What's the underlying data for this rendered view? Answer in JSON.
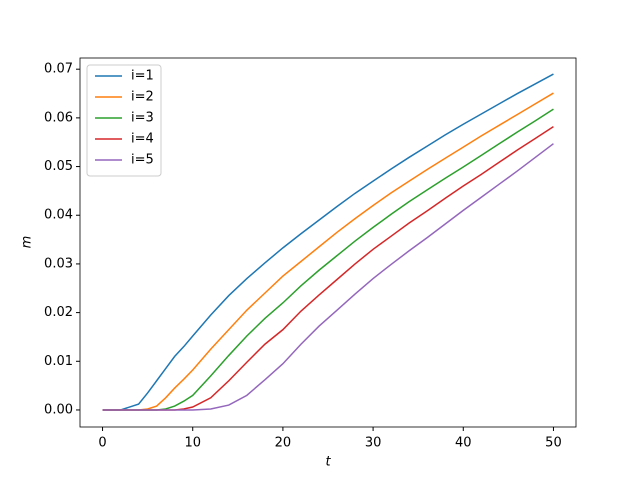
{
  "chart_data": {
    "type": "line",
    "xlabel": "t",
    "ylabel": "m",
    "x": [
      0,
      2,
      4,
      5,
      6,
      7,
      8,
      9,
      10,
      12,
      14,
      16,
      18,
      20,
      22,
      24,
      26,
      28,
      30,
      32,
      34,
      36,
      38,
      40,
      42,
      44,
      46,
      48,
      50
    ],
    "series": [
      {
        "name": "i=1",
        "color": "#1f77b4",
        "values": [
          0,
          0,
          0.0012,
          0.0035,
          0.006,
          0.0085,
          0.011,
          0.013,
          0.0152,
          0.0195,
          0.0235,
          0.027,
          0.0302,
          0.0333,
          0.0362,
          0.039,
          0.0418,
          0.0445,
          0.047,
          0.0495,
          0.0519,
          0.0542,
          0.0565,
          0.0587,
          0.0608,
          0.0629,
          0.065,
          0.067,
          0.069
        ]
      },
      {
        "name": "i=2",
        "color": "#ff7f0e",
        "values": [
          0,
          0,
          0,
          0.0002,
          0.0008,
          0.0025,
          0.0045,
          0.0063,
          0.0082,
          0.0125,
          0.0165,
          0.0205,
          0.024,
          0.0275,
          0.0305,
          0.0335,
          0.0365,
          0.0393,
          0.042,
          0.0446,
          0.047,
          0.0494,
          0.0517,
          0.054,
          0.0563,
          0.0585,
          0.0607,
          0.0629,
          0.0651
        ]
      },
      {
        "name": "i=3",
        "color": "#2ca02c",
        "values": [
          0,
          0,
          0,
          0,
          0,
          0.0002,
          0.0008,
          0.0018,
          0.003,
          0.007,
          0.0112,
          0.0152,
          0.0188,
          0.022,
          0.0255,
          0.0287,
          0.0317,
          0.0347,
          0.0375,
          0.0402,
          0.0428,
          0.0452,
          0.0476,
          0.0499,
          0.0523,
          0.0547,
          0.0571,
          0.0594,
          0.0618
        ]
      },
      {
        "name": "i=4",
        "color": "#d62728",
        "values": [
          0,
          0,
          0,
          0,
          0,
          0,
          0,
          0.0002,
          0.0006,
          0.0025,
          0.006,
          0.0098,
          0.0135,
          0.0165,
          0.0203,
          0.0236,
          0.0268,
          0.03,
          0.033,
          0.0357,
          0.0384,
          0.0409,
          0.0435,
          0.046,
          0.0484,
          0.0509,
          0.0534,
          0.0558,
          0.0582
        ]
      },
      {
        "name": "i=5",
        "color": "#9467bd",
        "values": [
          0,
          0,
          0,
          0,
          0,
          0,
          0,
          0,
          0,
          0.0002,
          0.001,
          0.003,
          0.0062,
          0.0095,
          0.0135,
          0.0172,
          0.0205,
          0.0238,
          0.027,
          0.0299,
          0.0327,
          0.0354,
          0.0382,
          0.041,
          0.0437,
          0.0464,
          0.0491,
          0.0519,
          0.0547
        ]
      }
    ],
    "xlim": [
      -2.5,
      52.5
    ],
    "xticks": [
      0,
      10,
      20,
      30,
      40,
      50
    ],
    "ylim": [
      -0.0035,
      0.0723
    ],
    "yticks": [
      {
        "value": 0,
        "label": "0.00"
      },
      {
        "value": 0.01,
        "label": "0.01"
      },
      {
        "value": 0.02,
        "label": "0.02"
      },
      {
        "value": 0.03,
        "label": "0.03"
      },
      {
        "value": 0.04,
        "label": "0.04"
      },
      {
        "value": 0.05,
        "label": "0.05"
      },
      {
        "value": 0.06,
        "label": "0.06"
      },
      {
        "value": 0.07,
        "label": "0.07"
      }
    ],
    "legend": "upper left"
  }
}
